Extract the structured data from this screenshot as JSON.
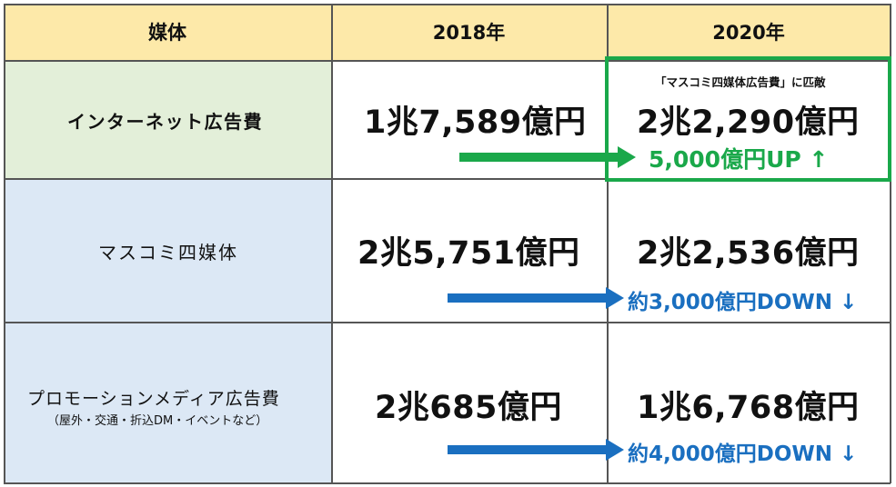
{
  "table": {
    "headers": [
      "媒体",
      "2018年",
      "2020年"
    ],
    "rows": [
      {
        "label": "インターネット広告費",
        "v2018": "1兆7,589億円",
        "v2020": "2兆2,290億円",
        "note": "「マスコミ四媒体広告費」に匹敵",
        "change": "5,000億円UP ↑",
        "change_color": "#1aa84a"
      },
      {
        "label": "マスコミ四媒体",
        "v2018": "2兆5,751億円",
        "v2020": "2兆2,536億円",
        "change": "約3,000億円DOWN ↓",
        "change_color": "#1a6fc0"
      },
      {
        "label": "プロモーションメディア広告費",
        "sublabel": "（屋外・交通・折込DM・イベントなど）",
        "v2018": "2兆685億円",
        "v2020": "1兆6,768億円",
        "change": "約4,000億円DOWN ↓",
        "change_color": "#1a6fc0"
      }
    ]
  },
  "colors": {
    "header_bg": "#fde9a9",
    "internet_row_bg": "#e3efd9",
    "other_rows_bg": "#dce8f5",
    "highlight_border": "#1aa84a",
    "down_arrow": "#1a6fc0"
  }
}
